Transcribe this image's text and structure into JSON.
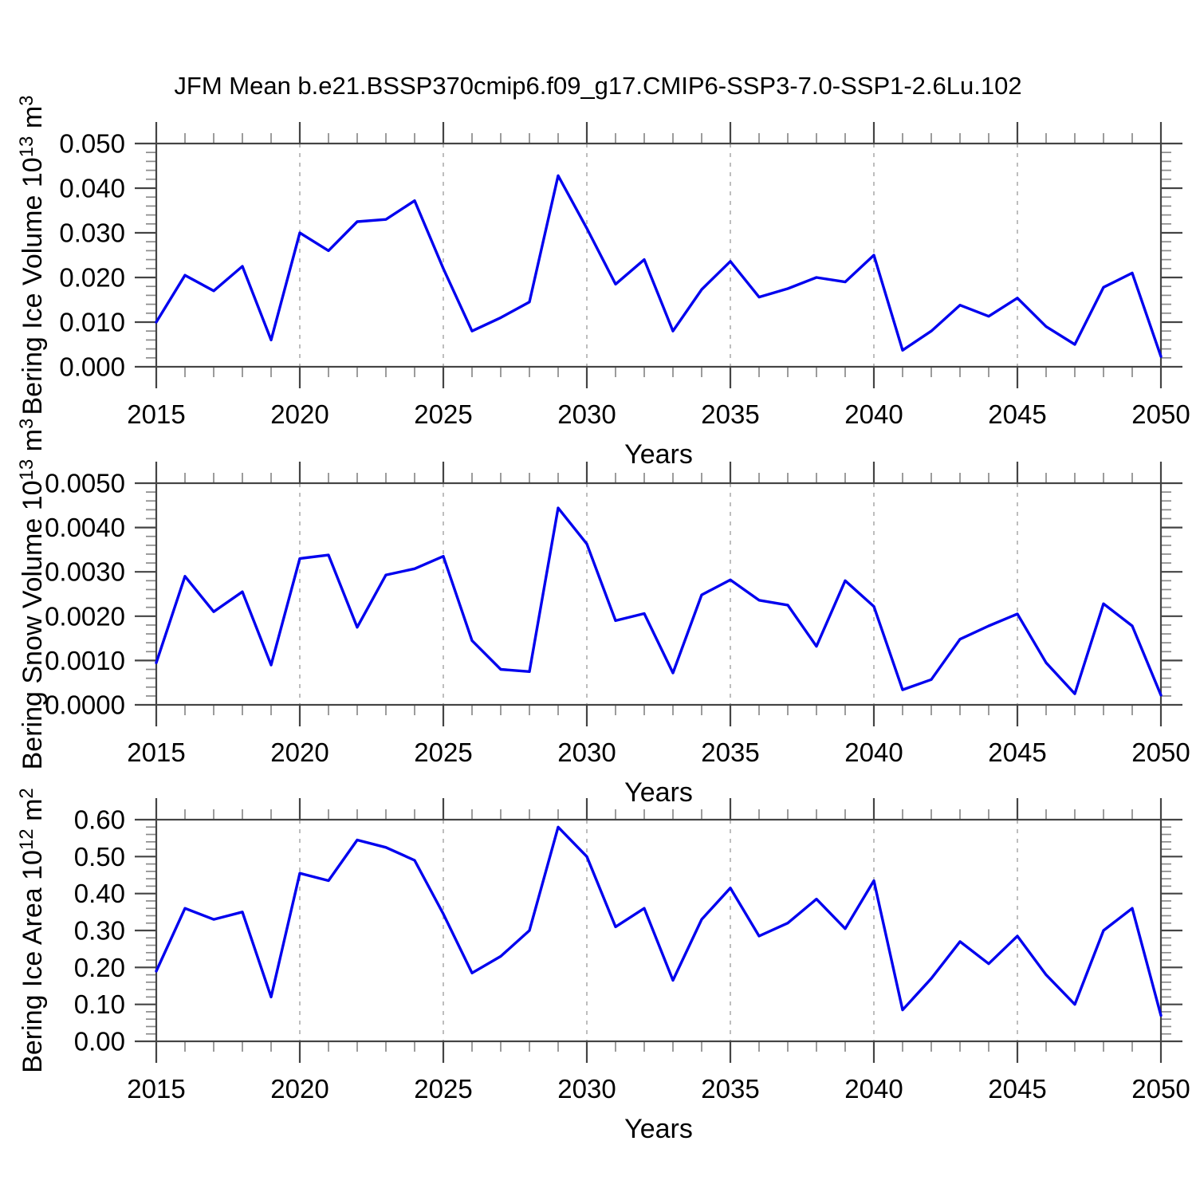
{
  "title": "JFM Mean b.e21.BSSP370cmip6.f09_g17.CMIP6-SSP3-7.0-SSP1-2.6Lu.102",
  "line_color": "#0000ee",
  "axis_color": "#444444",
  "minor_tick_color": "#8a8a8a",
  "grid_color": "#9a9a9a",
  "chart_data": [
    {
      "type": "line",
      "name": "bering-ice-volume",
      "title": "",
      "xlabel": "Years",
      "ylabel": "Bering Ice Volume 10^13 m^3",
      "ylabel_segments": [
        {
          "text": "Bering Ice Volume 10",
          "sup": false
        },
        {
          "text": "13",
          "sup": true
        },
        {
          "text": " m",
          "sup": false
        },
        {
          "text": "3",
          "sup": true
        }
      ],
      "ylim": [
        0.0,
        0.05
      ],
      "ytick_values": [
        0.0,
        0.01,
        0.02,
        0.03,
        0.04,
        0.05
      ],
      "ytick_labels": [
        "0.000",
        "0.010",
        "0.020",
        "0.030",
        "0.040",
        "0.050"
      ],
      "yminor_step": 0.002,
      "xlim": [
        2015,
        2050
      ],
      "xtick_values": [
        2015,
        2020,
        2025,
        2030,
        2035,
        2040,
        2045,
        2050
      ],
      "xtick_labels": [
        "2015",
        "2020",
        "2025",
        "2030",
        "2035",
        "2040",
        "2045",
        "2050"
      ],
      "xminor_step": 1,
      "grid": "dashed-vertical-at-major-xticks",
      "legend": "none",
      "x": [
        2015,
        2016,
        2017,
        2018,
        2019,
        2020,
        2021,
        2022,
        2023,
        2024,
        2025,
        2026,
        2027,
        2028,
        2029,
        2030,
        2031,
        2032,
        2033,
        2034,
        2035,
        2036,
        2037,
        2038,
        2039,
        2040,
        2041,
        2042,
        2043,
        2044,
        2045,
        2046,
        2047,
        2048,
        2049,
        2050
      ],
      "values": [
        0.01,
        0.0205,
        0.017,
        0.0225,
        0.006,
        0.03,
        0.026,
        0.0325,
        0.033,
        0.0372,
        0.022,
        0.008,
        0.011,
        0.0145,
        0.0428,
        0.031,
        0.0185,
        0.024,
        0.008,
        0.0173,
        0.0236,
        0.0156,
        0.0175,
        0.02,
        0.019,
        0.025,
        0.0037,
        0.008,
        0.0138,
        0.0113,
        0.0154,
        0.009,
        0.005,
        0.0178,
        0.021,
        0.0023
      ]
    },
    {
      "type": "line",
      "name": "bering-snow-volume",
      "title": "",
      "xlabel": "Years",
      "ylabel": "Bering Snow Volume 10^13 m^3",
      "ylabel_segments": [
        {
          "text": "Bering Snow Volume 10",
          "sup": false
        },
        {
          "text": "13",
          "sup": true
        },
        {
          "text": " m",
          "sup": false
        },
        {
          "text": "3",
          "sup": true
        }
      ],
      "ylim": [
        0.0,
        0.005
      ],
      "ytick_values": [
        0.0,
        0.001,
        0.002,
        0.003,
        0.004,
        0.005
      ],
      "ytick_labels": [
        "0.0000",
        "0.0010",
        "0.0020",
        "0.0030",
        "0.0040",
        "0.0050"
      ],
      "yminor_step": 0.0002,
      "xlim": [
        2015,
        2050
      ],
      "xtick_values": [
        2015,
        2020,
        2025,
        2030,
        2035,
        2040,
        2045,
        2050
      ],
      "xtick_labels": [
        "2015",
        "2020",
        "2025",
        "2030",
        "2035",
        "2040",
        "2045",
        "2050"
      ],
      "xminor_step": 1,
      "grid": "dashed-vertical-at-major-xticks",
      "legend": "none",
      "x": [
        2015,
        2016,
        2017,
        2018,
        2019,
        2020,
        2021,
        2022,
        2023,
        2024,
        2025,
        2026,
        2027,
        2028,
        2029,
        2030,
        2031,
        2032,
        2033,
        2034,
        2035,
        2036,
        2037,
        2038,
        2039,
        2040,
        2041,
        2042,
        2043,
        2044,
        2045,
        2046,
        2047,
        2048,
        2049,
        2050
      ],
      "values": [
        0.00095,
        0.0029,
        0.0021,
        0.00255,
        0.0009,
        0.0033,
        0.00338,
        0.00175,
        0.00293,
        0.00307,
        0.00335,
        0.00145,
        0.0008,
        0.00075,
        0.00444,
        0.00363,
        0.0019,
        0.00206,
        0.00072,
        0.00248,
        0.00282,
        0.00236,
        0.00225,
        0.00132,
        0.0028,
        0.00222,
        0.00034,
        0.00057,
        0.00148,
        0.00178,
        0.00205,
        0.00095,
        0.00025,
        0.00228,
        0.00178,
        0.00022
      ]
    },
    {
      "type": "line",
      "name": "bering-ice-area",
      "title": "",
      "xlabel": "Years",
      "ylabel": "Bering Ice Area 10^12 m^2",
      "ylabel_segments": [
        {
          "text": "Bering Ice Area 10",
          "sup": false
        },
        {
          "text": "12",
          "sup": true
        },
        {
          "text": " m",
          "sup": false
        },
        {
          "text": "2",
          "sup": true
        }
      ],
      "ylim": [
        0.0,
        0.6
      ],
      "ytick_values": [
        0.0,
        0.1,
        0.2,
        0.3,
        0.4,
        0.5,
        0.6
      ],
      "ytick_labels": [
        "0.00",
        "0.10",
        "0.20",
        "0.30",
        "0.40",
        "0.50",
        "0.60"
      ],
      "yminor_step": 0.02,
      "xlim": [
        2015,
        2050
      ],
      "xtick_values": [
        2015,
        2020,
        2025,
        2030,
        2035,
        2040,
        2045,
        2050
      ],
      "xtick_labels": [
        "2015",
        "2020",
        "2025",
        "2030",
        "2035",
        "2040",
        "2045",
        "2050"
      ],
      "xminor_step": 1,
      "grid": "dashed-vertical-at-major-xticks",
      "legend": "none",
      "x": [
        2015,
        2016,
        2017,
        2018,
        2019,
        2020,
        2021,
        2022,
        2023,
        2024,
        2025,
        2026,
        2027,
        2028,
        2029,
        2030,
        2031,
        2032,
        2033,
        2034,
        2035,
        2036,
        2037,
        2038,
        2039,
        2040,
        2041,
        2042,
        2043,
        2044,
        2045,
        2046,
        2047,
        2048,
        2049,
        2050
      ],
      "values": [
        0.19,
        0.36,
        0.33,
        0.35,
        0.12,
        0.455,
        0.435,
        0.545,
        0.525,
        0.49,
        0.345,
        0.185,
        0.23,
        0.3,
        0.58,
        0.5,
        0.31,
        0.36,
        0.165,
        0.33,
        0.415,
        0.285,
        0.32,
        0.385,
        0.305,
        0.435,
        0.085,
        0.17,
        0.27,
        0.21,
        0.285,
        0.18,
        0.1,
        0.3,
        0.36,
        0.07
      ]
    }
  ]
}
